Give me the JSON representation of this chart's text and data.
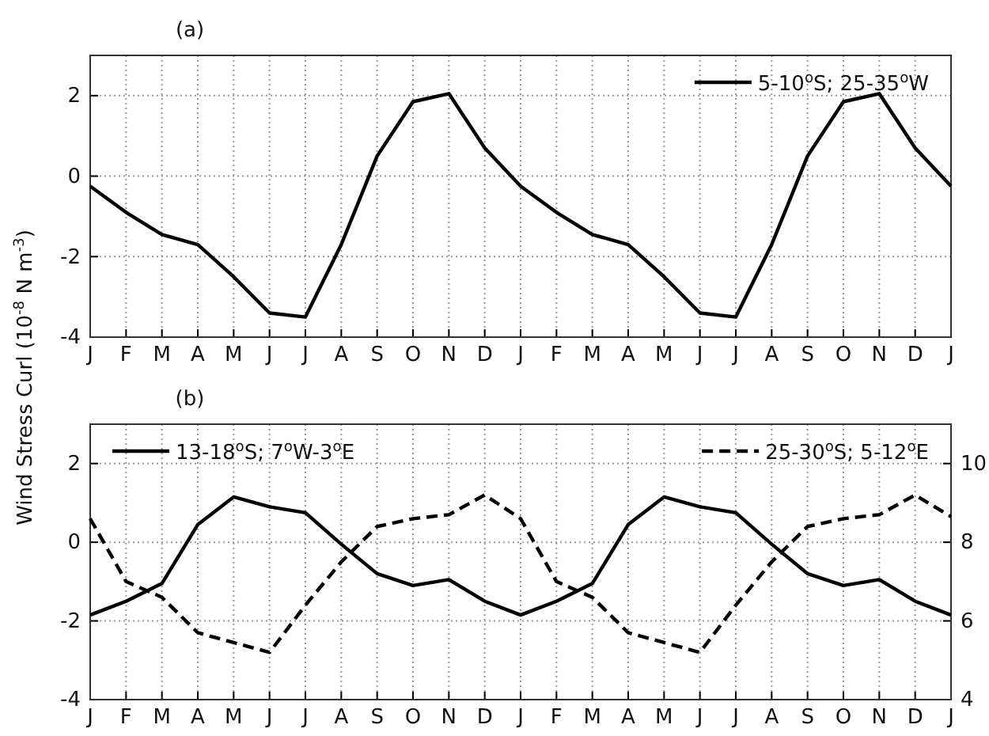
{
  "chart_data": [
    {
      "type": "line",
      "title": "(a)",
      "ylabel": "Wind Stress Curl (10$^{-8}$ N m$^{-3}$)",
      "categories": [
        "J",
        "F",
        "M",
        "A",
        "M",
        "J",
        "J",
        "A",
        "S",
        "O",
        "N",
        "D",
        "J",
        "F",
        "M",
        "A",
        "M",
        "J",
        "J",
        "A",
        "S",
        "O",
        "N",
        "D",
        "J"
      ],
      "series": [
        {
          "name": "5-10$^{o}$S; 25-35$^{o}$W",
          "color": "#000000",
          "line_style": "solid",
          "values": [
            -0.25,
            -0.9,
            -1.45,
            -1.7,
            -2.5,
            -3.4,
            -3.5,
            -1.7,
            0.5,
            1.85,
            2.05,
            0.7,
            -0.25,
            -0.9,
            -1.45,
            -1.7,
            -2.5,
            -3.4,
            -3.5,
            -1.7,
            0.5,
            1.85,
            2.05,
            0.7,
            -0.25
          ]
        }
      ],
      "ylim": [
        -4,
        3
      ],
      "yticks": [
        -4,
        -2,
        0,
        2
      ],
      "grid": true,
      "legend": "top right"
    },
    {
      "type": "line",
      "title": "(b)",
      "categories": [
        "J",
        "F",
        "M",
        "A",
        "M",
        "J",
        "J",
        "A",
        "S",
        "O",
        "N",
        "D",
        "J",
        "F",
        "M",
        "A",
        "M",
        "J",
        "J",
        "A",
        "S",
        "O",
        "N",
        "D",
        "J"
      ],
      "series": [
        {
          "name": "13-18$^{o}$S; 7$^{o}$W-3$^{o}$E",
          "color": "#000000",
          "line_style": "solid",
          "values": [
            -1.85,
            -1.5,
            -1.05,
            0.45,
            1.15,
            0.9,
            0.75,
            -0.05,
            -0.8,
            -1.1,
            -0.95,
            -1.5,
            -1.85,
            -1.5,
            -1.05,
            0.45,
            1.15,
            0.9,
            0.75,
            -0.05,
            -0.8,
            -1.1,
            -0.95,
            -1.5,
            -1.85
          ]
        },
        {
          "name": "25-30$^{o}$S; 5-12$^{o}$E",
          "color": "#000000",
          "line_style": "dashed",
          "axis": "y2",
          "values": [
            8.6,
            7.0,
            6.6,
            5.7,
            5.45,
            5.2,
            6.4,
            7.5,
            8.4,
            8.6,
            8.7,
            9.2,
            8.6,
            7.0,
            6.6,
            5.7,
            5.45,
            5.2,
            6.4,
            7.5,
            8.4,
            8.6,
            8.7,
            9.2,
            8.65
          ]
        }
      ],
      "ylim": [
        -4,
        3
      ],
      "yticks": [
        -4,
        -2,
        0,
        2
      ],
      "y2lim": [
        4,
        11
      ],
      "y2ticks": [
        4,
        6,
        8,
        10
      ],
      "grid": true,
      "legend": "top"
    }
  ]
}
